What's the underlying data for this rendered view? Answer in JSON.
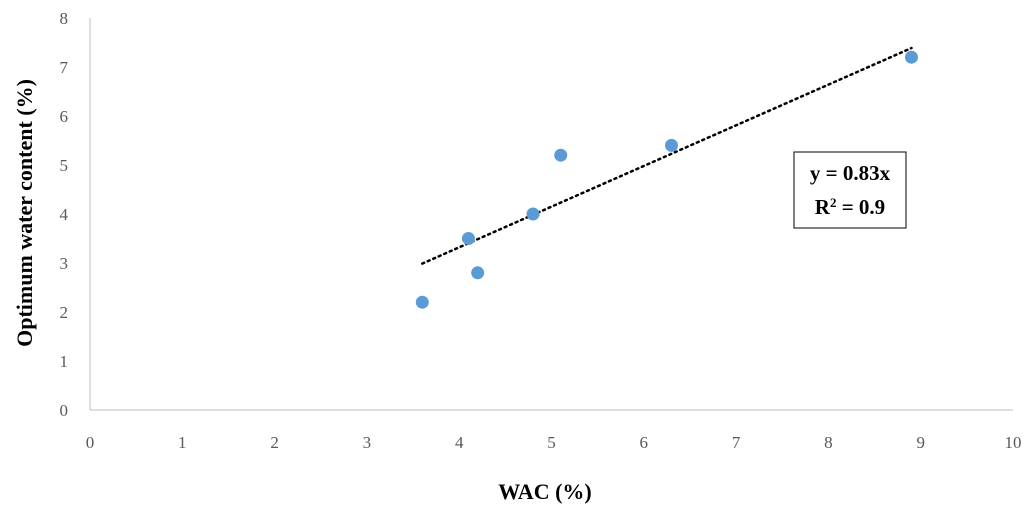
{
  "chart_data": {
    "type": "scatter",
    "xlabel": "WAC (%)",
    "ylabel": "Optimum water content (%)",
    "xlim": [
      0,
      10
    ],
    "ylim": [
      0,
      8
    ],
    "x_ticks": [
      0,
      1,
      2,
      3,
      4,
      5,
      6,
      7,
      8,
      9,
      10
    ],
    "y_ticks": [
      0,
      1,
      2,
      3,
      4,
      5,
      6,
      7,
      8
    ],
    "grid": false,
    "series": [
      {
        "x": [
          3.6,
          4.1,
          4.2,
          4.8,
          5.1,
          6.3,
          8.9
        ],
        "y": [
          2.2,
          3.5,
          2.8,
          4.0,
          5.2,
          5.4,
          7.2
        ],
        "color": "#5b9bd5"
      }
    ],
    "trendline": {
      "style": "dotted",
      "color": "#000000",
      "slope": 0.83,
      "x_start": 3.6,
      "x_end": 8.9
    },
    "annotation": {
      "equation": "y = 0.83x",
      "r2_prefix": "R",
      "r2_sup": "2",
      "r2_value": " = 0.9"
    }
  }
}
